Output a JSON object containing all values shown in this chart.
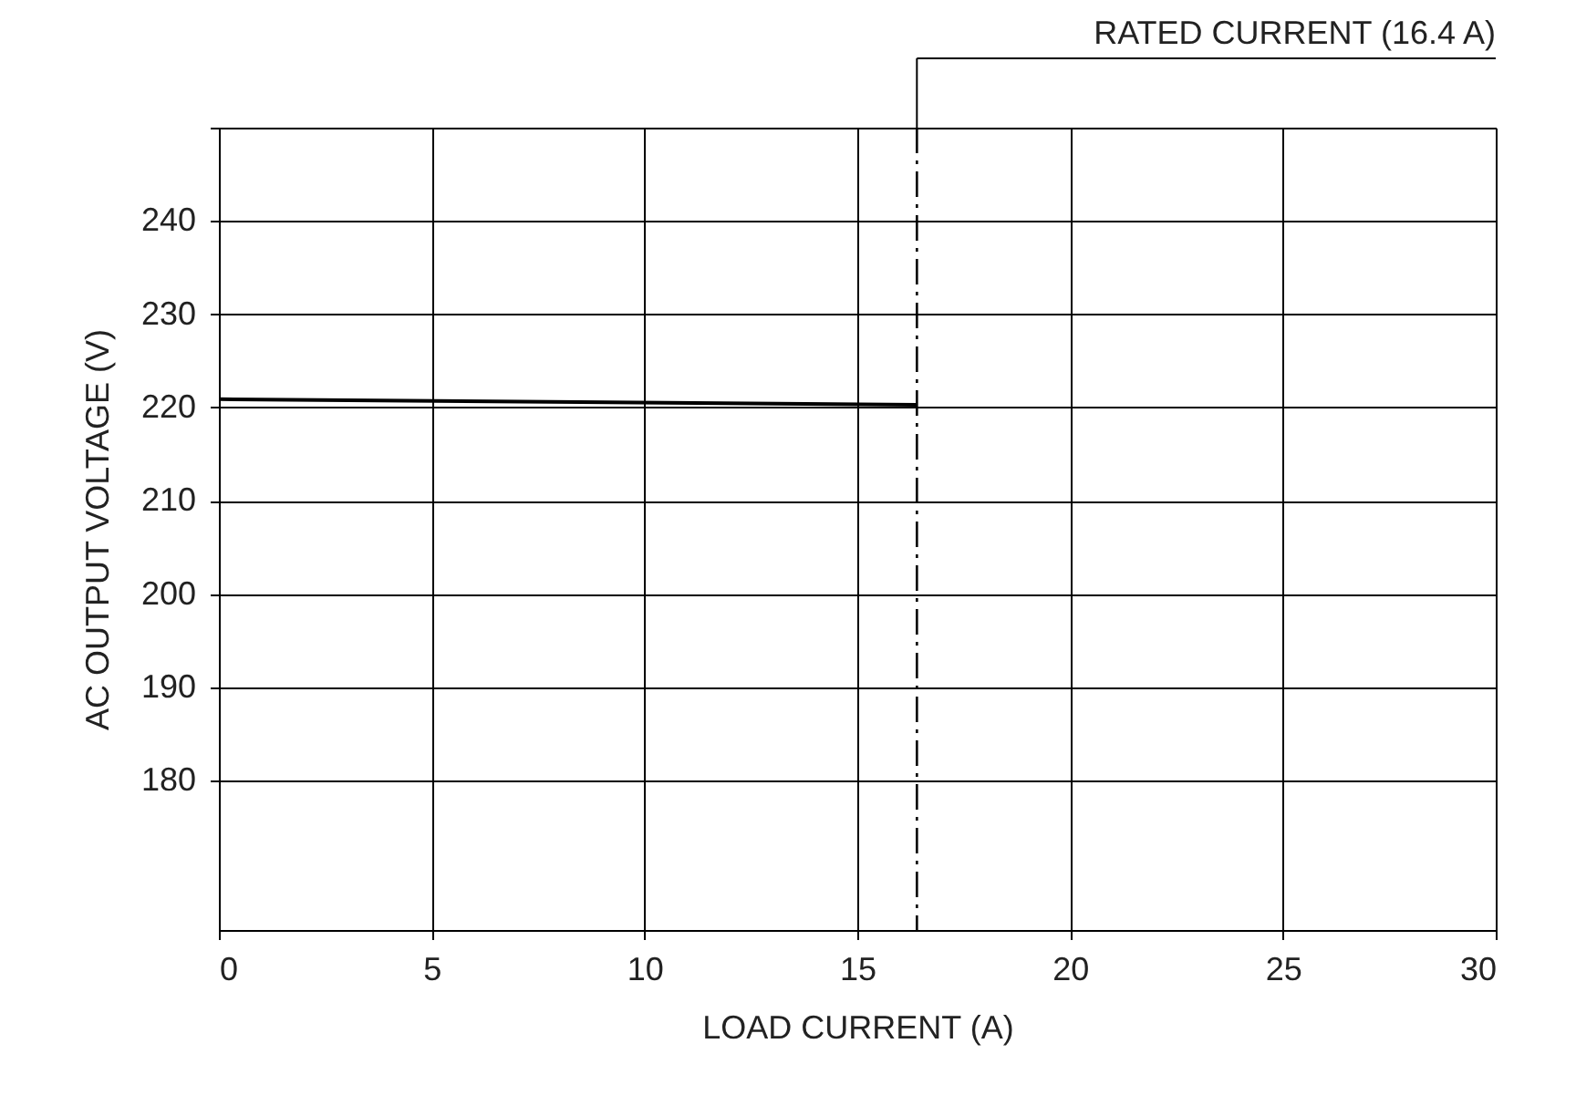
{
  "chart_data": {
    "type": "line",
    "xlabel": "LOAD CURRENT (A)",
    "ylabel": "AC OUTPUT VOLTAGE (V)",
    "x": [
      0,
      16.4
    ],
    "series": [
      {
        "color": "#000000",
        "values": [
          220.9,
          220.3
        ]
      }
    ],
    "xlim": [
      0,
      30
    ],
    "xticks": [
      0,
      5,
      10,
      15,
      20,
      25,
      30
    ],
    "ylim": [
      164,
      250
    ],
    "yticks": [
      180,
      190,
      200,
      210,
      220,
      230,
      240,
      {
        "value": 250,
        "label": null
      }
    ],
    "grid": true,
    "marker": "none",
    "line_style": "solid",
    "ref_lines": [
      {
        "axis": "x",
        "value": 16.4,
        "label": "RATED CURRENT (16.4 A)",
        "color": "#000000",
        "line_style": "dashed"
      }
    ]
  }
}
